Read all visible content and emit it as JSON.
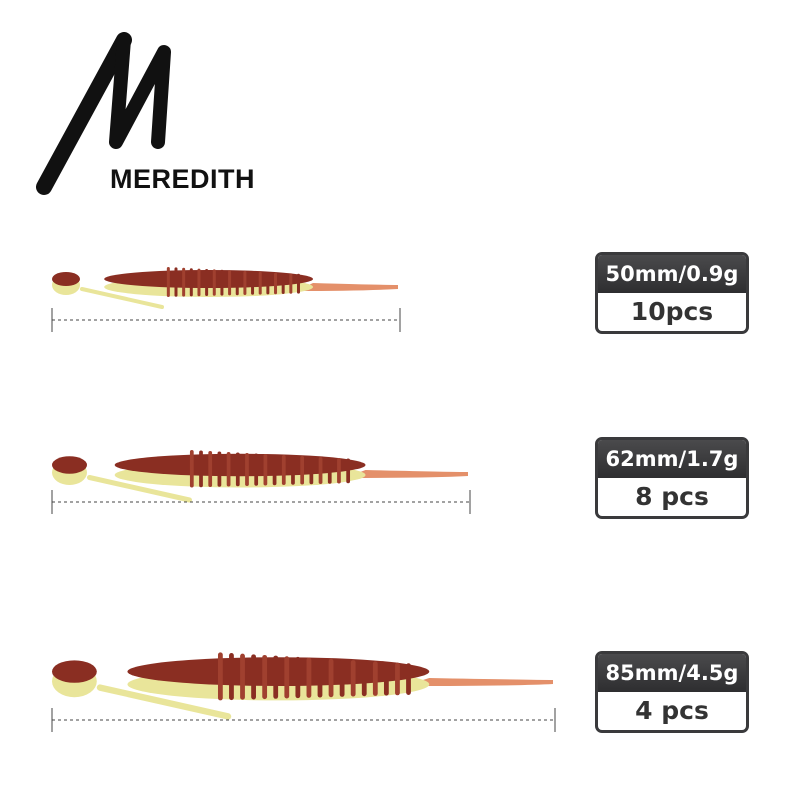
{
  "brand": {
    "name": "MEREDITH"
  },
  "colors": {
    "body": "#8a2e22",
    "belly": "#e9e59a",
    "tail": "#e4906a",
    "label_dark": "#3a3a3c"
  },
  "products": [
    {
      "size": "50mm/0.9g",
      "count": "10pcs"
    },
    {
      "size": "62mm/1.7g",
      "count": "8 pcs"
    },
    {
      "size": "85mm/4.5g",
      "count": "4 pcs"
    }
  ]
}
